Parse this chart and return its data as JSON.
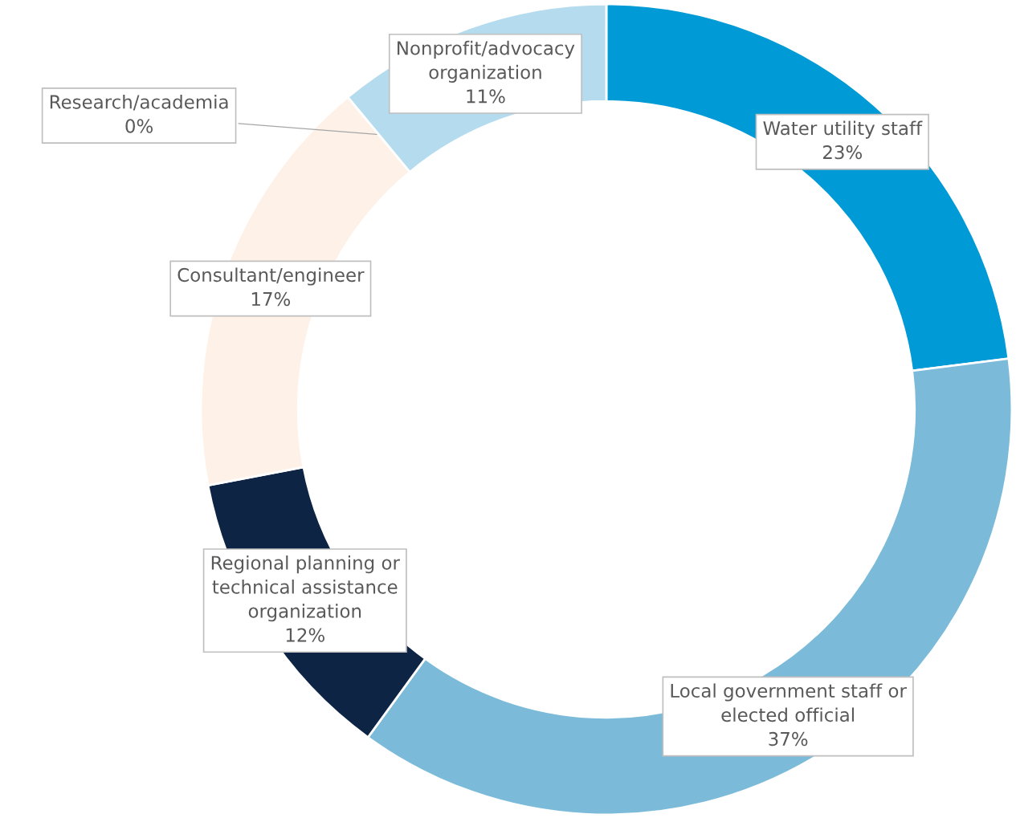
{
  "chart_data": {
    "type": "donut",
    "categories": [
      "Water utility staff",
      "Local government staff or elected official",
      "Regional planning or technical assistance organization",
      "Consultant/engineer",
      "Research/academia",
      "Nonprofit/advocacy organization"
    ],
    "values": [
      23,
      37,
      12,
      17,
      0,
      11
    ],
    "value_labels": [
      "23%",
      "37%",
      "12%",
      "17%",
      "0%",
      "11%"
    ],
    "colors": [
      "#009ad6",
      "#7bbbd9",
      "#0d2444",
      "#fdf1e8",
      "#d9eaf4",
      "#b5dcee"
    ],
    "legend": false
  }
}
